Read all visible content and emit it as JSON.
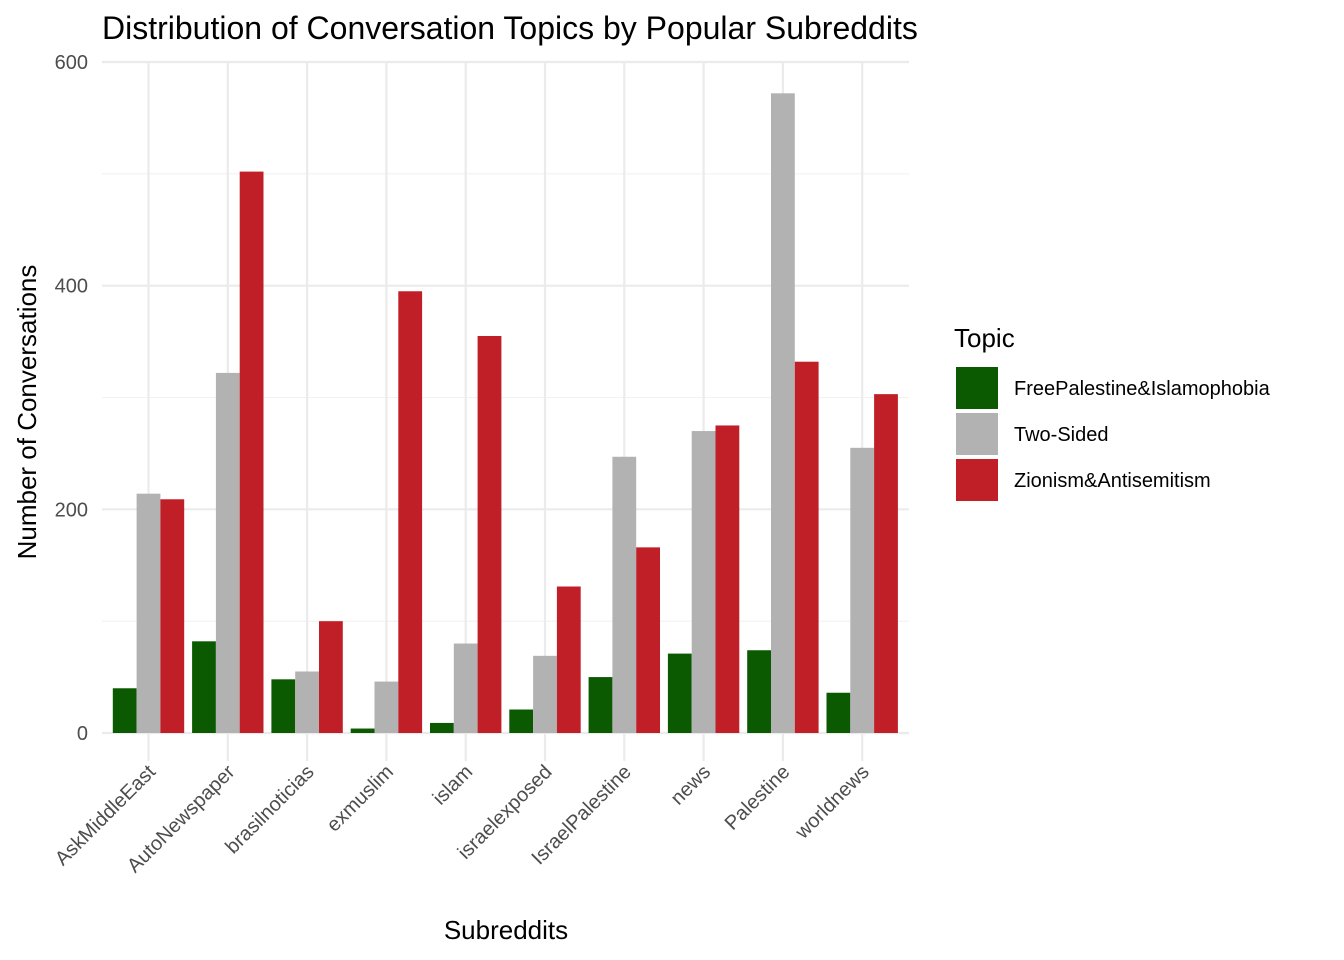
{
  "chart_data": {
    "type": "bar",
    "title": "Distribution of Conversation Topics by Popular Subreddits",
    "xlabel": "Subreddits",
    "ylabel": "Number of Conversations",
    "ylim": [
      -25,
      600
    ],
    "yticks": [
      0,
      200,
      400,
      600
    ],
    "grid": true,
    "legend": {
      "title": "Topic",
      "placement": "right"
    },
    "categories": [
      "AskMiddleEast",
      "AutoNewspaper",
      "brasilnoticias",
      "exmuslim",
      "islam",
      "israelexposed",
      "IsraelPalestine",
      "news",
      "Palestine",
      "worldnews"
    ],
    "series": [
      {
        "name": "FreePalestine&Islamophobia",
        "color": "#0b5a02",
        "values": [
          40,
          82,
          48,
          4,
          9,
          21,
          50,
          71,
          74,
          36
        ]
      },
      {
        "name": "Two-Sided",
        "color": "#b2b2b2",
        "values": [
          214,
          322,
          55,
          46,
          80,
          69,
          247,
          270,
          572,
          255
        ]
      },
      {
        "name": "Zionism&Antisemitism",
        "color": "#c11f28",
        "values": [
          209,
          502,
          100,
          395,
          355,
          131,
          166,
          275,
          332,
          303
        ]
      }
    ]
  }
}
